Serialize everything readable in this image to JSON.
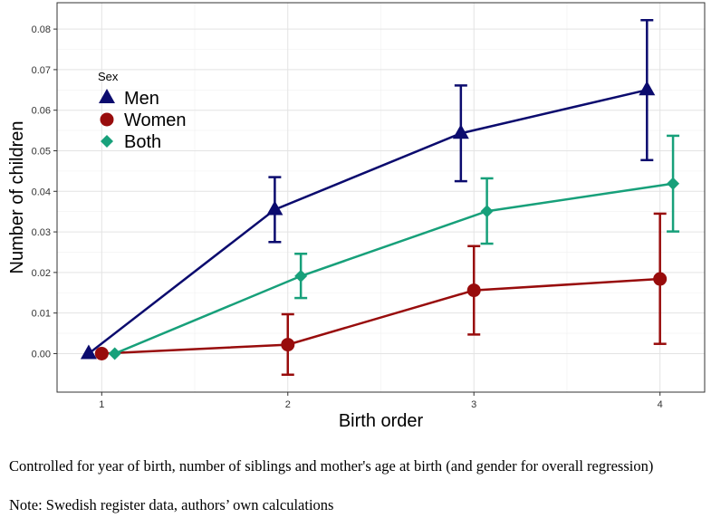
{
  "chart_data": {
    "type": "line",
    "xlabel": "Birth order",
    "ylabel": "Number of children",
    "x": [
      1,
      2,
      3,
      4
    ],
    "xlim": [
      0.76,
      4.24
    ],
    "ylim": [
      -0.0095,
      0.0865
    ],
    "xticks": [
      "1",
      "2",
      "3",
      "4"
    ],
    "yticks": [
      "0.00",
      "0.01",
      "0.02",
      "0.03",
      "0.04",
      "0.05",
      "0.06",
      "0.07",
      "0.08"
    ],
    "legend": {
      "title": "Sex",
      "position": "top-left"
    },
    "series": [
      {
        "name": "Men",
        "color": "#0b0b6e",
        "marker": "triangle",
        "dodge": -0.07,
        "values": [
          0.0,
          0.0355,
          0.0543,
          0.065
        ],
        "lower": [
          0.0,
          0.0275,
          0.0425,
          0.0477
        ],
        "upper": [
          0.0,
          0.0435,
          0.0661,
          0.0822
        ]
      },
      {
        "name": "Women",
        "color": "#980c0c",
        "marker": "circle",
        "dodge": 0.0,
        "values": [
          0.0,
          0.0022,
          0.0156,
          0.0184
        ],
        "lower": [
          0.0,
          -0.0052,
          0.0047,
          0.0024
        ],
        "upper": [
          0.0,
          0.0097,
          0.0265,
          0.0345
        ]
      },
      {
        "name": "Both",
        "color": "#17a07a",
        "marker": "diamond",
        "dodge": 0.07,
        "values": [
          0.0,
          0.0191,
          0.0351,
          0.0419
        ],
        "lower": [
          0.0,
          0.0137,
          0.0271,
          0.0301
        ],
        "upper": [
          0.0,
          0.0246,
          0.0432,
          0.0537
        ]
      }
    ]
  },
  "caption": {
    "controls": "Controlled for year of birth, number of siblings and mother's age at birth (and gender for overall regression)",
    "note": "Note: Swedish register data, authors’ own calculations"
  }
}
